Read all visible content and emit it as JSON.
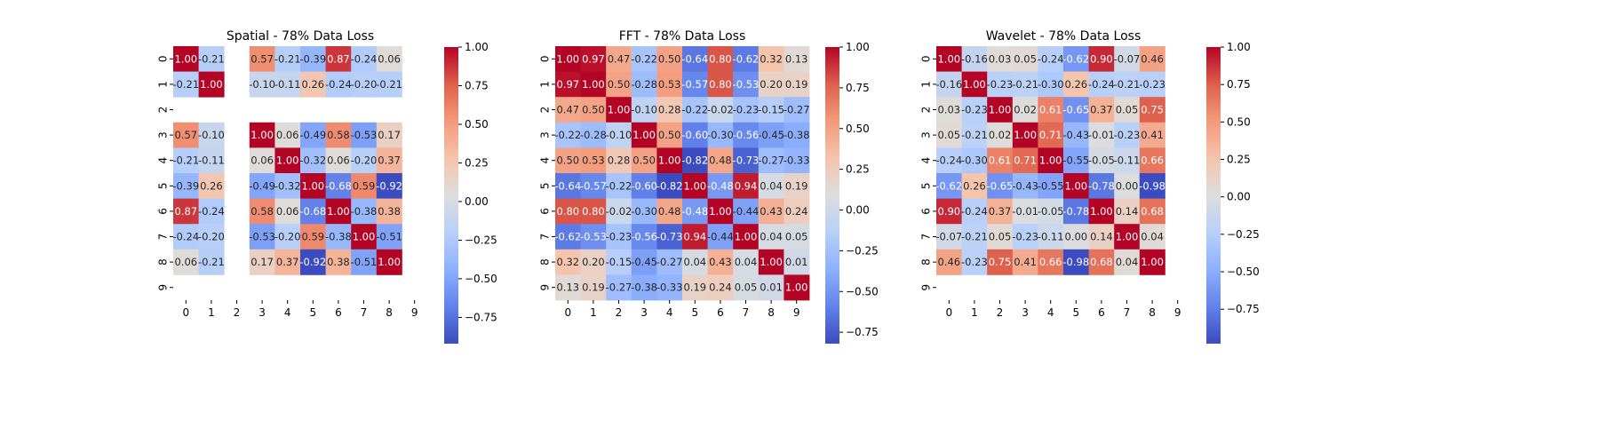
{
  "chart_data": [
    {
      "type": "heatmap",
      "title": "Spatial - 78% Data Loss",
      "x_ticks": [
        "0",
        "1",
        "2",
        "3",
        "4",
        "5",
        "6",
        "7",
        "8",
        "9"
      ],
      "y_ticks": [
        "0",
        "1",
        "2",
        "3",
        "4",
        "5",
        "6",
        "7",
        "8",
        "9"
      ],
      "matrix": [
        [
          1.0,
          -0.21,
          null,
          0.57,
          -0.21,
          -0.39,
          0.87,
          -0.24,
          0.06,
          null
        ],
        [
          -0.21,
          1.0,
          null,
          -0.1,
          -0.11,
          0.26,
          -0.24,
          -0.2,
          -0.21,
          null
        ],
        [
          null,
          null,
          null,
          null,
          null,
          null,
          null,
          null,
          null,
          null
        ],
        [
          0.57,
          -0.1,
          null,
          1.0,
          0.06,
          -0.49,
          0.58,
          -0.53,
          0.17,
          null
        ],
        [
          -0.21,
          -0.11,
          null,
          0.06,
          1.0,
          -0.32,
          0.06,
          -0.2,
          0.37,
          null
        ],
        [
          -0.39,
          0.26,
          null,
          -0.49,
          -0.32,
          1.0,
          -0.68,
          0.59,
          -0.92,
          null
        ],
        [
          0.87,
          -0.24,
          null,
          0.58,
          0.06,
          -0.68,
          1.0,
          -0.38,
          0.38,
          null
        ],
        [
          -0.24,
          -0.2,
          null,
          -0.53,
          -0.2,
          0.59,
          -0.38,
          1.0,
          -0.51,
          null
        ],
        [
          0.06,
          -0.21,
          null,
          0.17,
          0.37,
          -0.92,
          0.38,
          -0.51,
          1.0,
          null
        ],
        [
          null,
          null,
          null,
          null,
          null,
          null,
          null,
          null,
          null,
          null
        ]
      ],
      "colorbar": {
        "vmin": -0.92,
        "vmax": 1.0,
        "ticks": [
          "1.00",
          "0.75",
          "0.50",
          "0.25",
          "0.00",
          "−0.25",
          "−0.50",
          "−0.75"
        ]
      }
    },
    {
      "type": "heatmap",
      "title": "FFT - 78% Data Loss",
      "x_ticks": [
        "0",
        "1",
        "2",
        "3",
        "4",
        "5",
        "6",
        "7",
        "8",
        "9"
      ],
      "y_ticks": [
        "0",
        "1",
        "2",
        "3",
        "4",
        "5",
        "6",
        "7",
        "8",
        "9"
      ],
      "matrix": [
        [
          1.0,
          0.97,
          0.47,
          -0.22,
          0.5,
          -0.64,
          0.8,
          -0.62,
          0.32,
          0.13
        ],
        [
          0.97,
          1.0,
          0.5,
          -0.28,
          0.53,
          -0.57,
          0.8,
          -0.53,
          0.2,
          0.19
        ],
        [
          0.47,
          0.5,
          1.0,
          -0.1,
          0.28,
          -0.22,
          -0.02,
          -0.23,
          -0.15,
          -0.27
        ],
        [
          -0.22,
          -0.28,
          -0.1,
          1.0,
          0.5,
          -0.6,
          -0.3,
          -0.56,
          -0.45,
          -0.38
        ],
        [
          0.5,
          0.53,
          0.28,
          0.5,
          1.0,
          -0.82,
          0.48,
          -0.73,
          -0.27,
          -0.33
        ],
        [
          -0.64,
          -0.57,
          -0.22,
          -0.6,
          -0.82,
          1.0,
          -0.48,
          0.94,
          0.04,
          0.19
        ],
        [
          0.8,
          0.8,
          -0.02,
          -0.3,
          0.48,
          -0.48,
          1.0,
          -0.44,
          0.43,
          0.24
        ],
        [
          -0.62,
          -0.53,
          -0.23,
          -0.56,
          -0.73,
          0.94,
          -0.44,
          1.0,
          0.04,
          0.05
        ],
        [
          0.32,
          0.2,
          -0.15,
          -0.45,
          -0.27,
          0.04,
          0.43,
          0.04,
          1.0,
          0.01
        ],
        [
          0.13,
          0.19,
          -0.27,
          -0.38,
          -0.33,
          0.19,
          0.24,
          0.05,
          0.01,
          1.0
        ]
      ],
      "colorbar": {
        "vmin": -0.82,
        "vmax": 1.0,
        "ticks": [
          "1.00",
          "0.75",
          "0.50",
          "0.25",
          "0.00",
          "−0.25",
          "−0.50",
          "−0.75"
        ]
      }
    },
    {
      "type": "heatmap",
      "title": "Wavelet - 78% Data Loss",
      "x_ticks": [
        "0",
        "1",
        "2",
        "3",
        "4",
        "5",
        "6",
        "7",
        "8",
        "9"
      ],
      "y_ticks": [
        "0",
        "1",
        "2",
        "3",
        "4",
        "5",
        "6",
        "7",
        "8",
        "9"
      ],
      "matrix": [
        [
          1.0,
          -0.16,
          0.03,
          0.05,
          -0.24,
          -0.62,
          0.9,
          -0.07,
          0.46,
          null
        ],
        [
          -0.16,
          1.0,
          -0.23,
          -0.21,
          -0.3,
          0.26,
          -0.24,
          -0.21,
          -0.23,
          null
        ],
        [
          0.03,
          -0.23,
          1.0,
          0.02,
          0.61,
          -0.65,
          0.37,
          0.05,
          0.75,
          null
        ],
        [
          0.05,
          -0.21,
          0.02,
          1.0,
          0.71,
          -0.43,
          -0.01,
          -0.23,
          0.41,
          null
        ],
        [
          -0.24,
          -0.3,
          0.61,
          0.71,
          1.0,
          -0.55,
          -0.05,
          -0.11,
          0.66,
          null
        ],
        [
          -0.62,
          0.26,
          -0.65,
          -0.43,
          -0.55,
          1.0,
          -0.78,
          -0.0,
          -0.98,
          null
        ],
        [
          0.9,
          -0.24,
          0.37,
          -0.01,
          -0.05,
          -0.78,
          1.0,
          0.14,
          0.68,
          null
        ],
        [
          -0.07,
          -0.21,
          0.05,
          -0.23,
          -0.11,
          -0.0,
          0.14,
          1.0,
          0.04,
          null
        ],
        [
          0.46,
          -0.23,
          0.75,
          0.41,
          0.66,
          -0.98,
          0.68,
          0.04,
          1.0,
          null
        ],
        [
          null,
          null,
          null,
          null,
          null,
          null,
          null,
          null,
          null,
          null
        ]
      ],
      "colorbar": {
        "vmin": -0.98,
        "vmax": 1.0,
        "ticks": [
          "1.00",
          "0.75",
          "0.50",
          "0.25",
          "0.00",
          "−0.25",
          "−0.50",
          "−0.75"
        ]
      }
    }
  ]
}
